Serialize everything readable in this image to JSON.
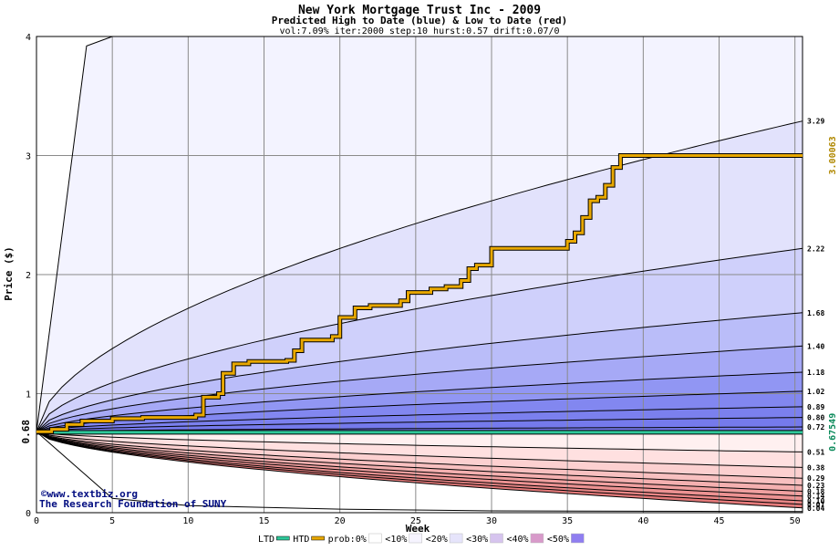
{
  "title": "New York Mortgage Trust Inc - 2009",
  "subtitle": "Predicted High to Date (blue) &  Low to Date (red)",
  "params": "vol:7.09% iter:2000 step:10 hurst:0.57 drift:0.07/0",
  "watermark_1": "©www.textbiz.org",
  "watermark_2": "The Research Foundation of SUNY",
  "chart_data": {
    "type": "area",
    "xlabel": "Week",
    "ylabel": "Price ($)",
    "xlim": [
      0,
      50.5
    ],
    "ylim": [
      0,
      4
    ],
    "x_ticks": [
      0,
      5,
      10,
      15,
      20,
      25,
      30,
      35,
      40,
      45,
      50
    ],
    "y_ticks": [
      0,
      1,
      2,
      3,
      4
    ],
    "grid": true,
    "start_price": 0.68,
    "start_label": "0.68",
    "high_to_date_value": 3.00063,
    "high_to_date_label": "3.00063",
    "low_to_date_value": 0.67549,
    "low_to_date_label": "0.67549",
    "high_to_date_path": [
      [
        0,
        0.68
      ],
      [
        1,
        0.7
      ],
      [
        2,
        0.74
      ],
      [
        3,
        0.77
      ],
      [
        5,
        0.79
      ],
      [
        7,
        0.8
      ],
      [
        10.5,
        0.82
      ],
      [
        11,
        0.97
      ],
      [
        12,
        1.0
      ],
      [
        12.3,
        1.17
      ],
      [
        13,
        1.25
      ],
      [
        14,
        1.27
      ],
      [
        16.5,
        1.28
      ],
      [
        17,
        1.36
      ],
      [
        17.5,
        1.45
      ],
      [
        19.5,
        1.48
      ],
      [
        20,
        1.64
      ],
      [
        21,
        1.72
      ],
      [
        22,
        1.74
      ],
      [
        24,
        1.78
      ],
      [
        24.5,
        1.85
      ],
      [
        26,
        1.88
      ],
      [
        27,
        1.9
      ],
      [
        28,
        1.95
      ],
      [
        28.5,
        2.05
      ],
      [
        29,
        2.08
      ],
      [
        30,
        2.22
      ],
      [
        35,
        2.28
      ],
      [
        35.5,
        2.35
      ],
      [
        36,
        2.48
      ],
      [
        36.5,
        2.62
      ],
      [
        37,
        2.65
      ],
      [
        37.5,
        2.75
      ],
      [
        38,
        2.9
      ],
      [
        38.5,
        3.0
      ],
      [
        50.5,
        3.0
      ]
    ],
    "low_to_date_path": [
      [
        0,
        0.675
      ],
      [
        50.5,
        0.675
      ]
    ],
    "high_quantiles": [
      {
        "label": "3.29",
        "end": 3.29
      },
      {
        "label": "2.22",
        "end": 2.22
      },
      {
        "label": "1.68",
        "end": 1.68
      },
      {
        "label": "1.40",
        "end": 1.4
      },
      {
        "label": "1.18",
        "end": 1.18
      },
      {
        "label": "1.02",
        "end": 1.02
      },
      {
        "label": "0.89",
        "end": 0.89
      },
      {
        "label": "0.80",
        "end": 0.8
      },
      {
        "label": "0.72",
        "end": 0.72
      }
    ],
    "low_quantiles": [
      {
        "label": "0.51",
        "end": 0.51
      },
      {
        "label": "0.38",
        "end": 0.38
      },
      {
        "label": "0.29",
        "end": 0.29
      },
      {
        "label": "0.23",
        "end": 0.23
      },
      {
        "label": "0.18",
        "end": 0.18
      },
      {
        "label": "0.14",
        "end": 0.14
      },
      {
        "label": "0.10",
        "end": 0.1
      },
      {
        "label": "0.07",
        "end": 0.07
      },
      {
        "label": "0.04",
        "end": 0.04
      }
    ],
    "legend": [
      {
        "label": "LTD",
        "color": "#2fc89a",
        "kind": "line"
      },
      {
        "label": "HTD",
        "color": "#e8a800",
        "kind": "line"
      },
      {
        "label": "prob:0%",
        "color": "#ffffff",
        "kind": "box"
      },
      {
        "label": "<10%",
        "color": "#f6f4ff",
        "kind": "box"
      },
      {
        "label": "<20%",
        "color": "#e6e4fb",
        "kind": "box"
      },
      {
        "label": "<30%",
        "color": "#d6c4ee",
        "kind": "box"
      },
      {
        "label": "<40%",
        "color": "#d89aca",
        "kind": "box"
      },
      {
        "label": "<50%",
        "color": "#8f7ef0",
        "kind": "box"
      }
    ],
    "colors": {
      "htd_line": "#e8a800",
      "ltd_line": "#2fc89a",
      "htd_label": "#b08800",
      "ltd_label": "#0a8a5a",
      "blue_bands": [
        "#f3f3ff",
        "#e2e2fc",
        "#cfd0fb",
        "#babdf9",
        "#a6a9f6",
        "#9196f3",
        "#8287f0",
        "#7b80ee",
        "#757aec"
      ],
      "red_bands": [
        "#fff0f0",
        "#ffe0e0",
        "#fcd0d0",
        "#f8c0c0",
        "#f4b0b0",
        "#f0a0a0",
        "#ec9292",
        "#e88686",
        "#e47a7a"
      ]
    }
  }
}
